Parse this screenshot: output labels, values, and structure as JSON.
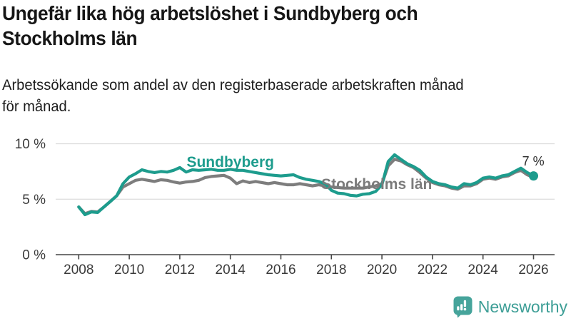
{
  "title": {
    "lines": [
      "Ungefär lika hög arbetslöshet i Sundbyberg och",
      "Stockholms län"
    ]
  },
  "subtitle": {
    "lines": [
      "Arbetssökande som andel av den registerbaserade arbetskraften månad",
      "för månad."
    ]
  },
  "branding": {
    "name": "Newsworthy",
    "color": "#3d9e96",
    "icon": "bar-chart-speech-bubble-icon"
  },
  "chart_data": {
    "type": "line",
    "title": "Ungefär lika hög arbetslöshet i Sundbyberg och Stockholms län",
    "subtitle": "Arbetssökande som andel av den registerbaserade arbetskraften månad för månad.",
    "x_start": 2008.0,
    "x_step": 0.25,
    "x_axis": {
      "ticks": [
        {
          "value": 2008,
          "label": "2008"
        },
        {
          "value": 2010,
          "label": "2010"
        },
        {
          "value": 2012,
          "label": "2012"
        },
        {
          "value": 2014,
          "label": "2014"
        },
        {
          "value": 2016,
          "label": "2016"
        },
        {
          "value": 2018,
          "label": "2018"
        },
        {
          "value": 2020,
          "label": "2020"
        },
        {
          "value": 2022,
          "label": "2022"
        },
        {
          "value": 2024,
          "label": "2024"
        },
        {
          "value": 2026,
          "label": "2026"
        }
      ],
      "range": [
        2007.1,
        2026.85
      ]
    },
    "y_axis": {
      "ticks": [
        {
          "value": 0,
          "label": "0 %"
        },
        {
          "value": 5,
          "label": "5 %"
        },
        {
          "value": 10,
          "label": "10 %"
        }
      ],
      "range": [
        0,
        10.4
      ],
      "grid": true
    },
    "series": [
      {
        "name": "Stockholms län",
        "color": "#7d7d7d",
        "end_dot": false,
        "values": [
          4.3,
          3.7,
          3.9,
          3.85,
          4.3,
          4.8,
          5.3,
          6.1,
          6.4,
          6.7,
          6.8,
          6.7,
          6.6,
          6.75,
          6.7,
          6.55,
          6.45,
          6.55,
          6.6,
          6.7,
          6.95,
          7.05,
          7.1,
          7.15,
          6.9,
          6.4,
          6.65,
          6.5,
          6.6,
          6.5,
          6.4,
          6.5,
          6.4,
          6.3,
          6.3,
          6.4,
          6.3,
          6.2,
          6.3,
          6.2,
          6.1,
          6.05,
          6.0,
          6.0,
          6.0,
          6.0,
          6.1,
          6.2,
          6.4,
          8.0,
          8.6,
          8.45,
          8.1,
          7.85,
          7.4,
          6.9,
          6.5,
          6.3,
          6.2,
          6.0,
          5.9,
          6.2,
          6.2,
          6.4,
          6.8,
          6.9,
          6.8,
          7.0,
          7.1,
          7.4,
          7.6,
          7.2,
          6.95
        ]
      },
      {
        "name": "Sundbyberg",
        "color": "#1d9c8d",
        "end_dot": true,
        "values": [
          4.3,
          3.6,
          3.85,
          3.8,
          4.3,
          4.8,
          5.3,
          6.4,
          7.0,
          7.3,
          7.65,
          7.5,
          7.4,
          7.5,
          7.45,
          7.6,
          7.85,
          7.45,
          7.65,
          7.6,
          7.65,
          7.7,
          7.6,
          7.6,
          7.7,
          7.6,
          7.6,
          7.5,
          7.4,
          7.3,
          7.2,
          7.15,
          7.1,
          7.15,
          7.2,
          6.95,
          6.8,
          6.7,
          6.6,
          6.4,
          5.8,
          5.55,
          5.5,
          5.35,
          5.3,
          5.45,
          5.5,
          5.7,
          6.3,
          8.4,
          9.0,
          8.6,
          8.2,
          7.95,
          7.6,
          7.0,
          6.6,
          6.4,
          6.3,
          6.1,
          6.0,
          6.4,
          6.3,
          6.5,
          6.9,
          7.0,
          6.9,
          7.1,
          7.2,
          7.5,
          7.8,
          7.4,
          7.1
        ]
      }
    ],
    "series_labels": [
      {
        "text": "Sundbyberg",
        "x": 2012.27,
        "y": 7.91,
        "color": "#1d9c8d"
      },
      {
        "text": "Stockholms län",
        "x": 2017.6,
        "y": 5.92,
        "color": "#7b7b7b"
      }
    ],
    "value_label": {
      "text": "7 %",
      "x": 2025.55,
      "y": 8.04
    },
    "legend_position": "inline-labels"
  }
}
